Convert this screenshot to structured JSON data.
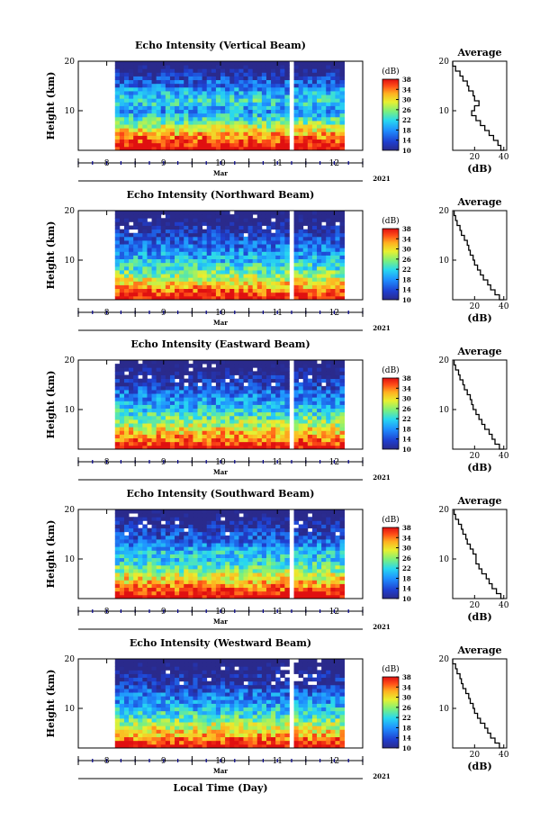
{
  "chart_data": [
    {
      "type": "heatmap",
      "title": "Echo Intensity (Vertical Beam)",
      "ylabel": "Height (km)",
      "ylim": [
        2,
        20
      ],
      "yticks": [
        "10",
        "20"
      ],
      "xticks": [
        "8",
        "9",
        "10",
        "11",
        "12"
      ],
      "x_month": "Mar",
      "x_year": "2021",
      "colorbar_label": "(dB)",
      "colorbar_ticks": [
        "10",
        "14",
        "18",
        "22",
        "26",
        "30",
        "34",
        "38"
      ],
      "colorbar_range": [
        10,
        38
      ],
      "data_gaps_day": [
        [
          7.5,
          8.15
        ],
        [
          11.2,
          11.3
        ]
      ],
      "x_range_day": [
        7.5,
        12.5
      ],
      "profile": {
        "title": "Average",
        "xlabel": "(dB)",
        "xticks": [
          "20",
          "40"
        ],
        "xlim": [
          5,
          42
        ],
        "height_km": [
          20,
          19,
          18,
          17,
          16,
          15,
          14,
          13,
          12,
          11,
          10,
          9,
          8,
          7,
          6,
          5,
          4,
          3,
          2
        ],
        "avg_db": [
          5,
          7,
          10,
          12,
          15,
          16,
          19,
          20,
          23,
          20,
          18,
          21,
          24,
          27,
          30,
          33,
          36,
          38,
          40
        ]
      }
    },
    {
      "type": "heatmap",
      "title": "Echo Intensity (Northward Beam)",
      "ylabel": "Height (km)",
      "ylim": [
        2,
        20
      ],
      "yticks": [
        "10",
        "20"
      ],
      "xticks": [
        "8",
        "9",
        "10",
        "11",
        "12"
      ],
      "x_month": "Mar",
      "x_year": "2021",
      "colorbar_label": "(dB)",
      "colorbar_ticks": [
        "10",
        "14",
        "18",
        "22",
        "26",
        "30",
        "34",
        "38"
      ],
      "colorbar_range": [
        10,
        38
      ],
      "data_gaps_day": [
        [
          7.5,
          8.15
        ],
        [
          11.2,
          11.3
        ]
      ],
      "x_range_day": [
        7.5,
        12.5
      ],
      "profile": {
        "title": "Average",
        "xlabel": "(dB)",
        "xticks": [
          "20",
          "40"
        ],
        "xlim": [
          5,
          42
        ],
        "height_km": [
          20,
          19,
          18,
          17,
          16,
          15,
          14,
          13,
          12,
          11,
          10,
          9,
          8,
          7,
          6,
          5,
          4,
          3,
          2
        ],
        "avg_db": [
          6,
          7,
          8,
          10,
          11,
          13,
          15,
          16,
          17,
          19,
          20,
          22,
          24,
          26,
          29,
          31,
          34,
          37,
          40
        ]
      }
    },
    {
      "type": "heatmap",
      "title": "Echo Intensity (Eastward Beam)",
      "ylabel": "Height (km)",
      "ylim": [
        2,
        20
      ],
      "yticks": [
        "10",
        "20"
      ],
      "xticks": [
        "8",
        "9",
        "10",
        "11",
        "12"
      ],
      "x_month": "Mar",
      "x_year": "2021",
      "colorbar_label": "(dB)",
      "colorbar_ticks": [
        "10",
        "14",
        "18",
        "22",
        "26",
        "30",
        "34",
        "38"
      ],
      "colorbar_range": [
        10,
        38
      ],
      "data_gaps_day": [
        [
          7.5,
          8.15
        ],
        [
          11.2,
          11.3
        ]
      ],
      "x_range_day": [
        7.5,
        12.5
      ],
      "profile": {
        "title": "Average",
        "xlabel": "(dB)",
        "xticks": [
          "20",
          "40"
        ],
        "xlim": [
          5,
          42
        ],
        "height_km": [
          20,
          19,
          18,
          17,
          16,
          15,
          14,
          13,
          12,
          11,
          10,
          9,
          8,
          7,
          6,
          5,
          4,
          3,
          2
        ],
        "avg_db": [
          6,
          7,
          9,
          10,
          12,
          13,
          15,
          17,
          18,
          19,
          21,
          23,
          25,
          27,
          30,
          32,
          34,
          37,
          40
        ]
      }
    },
    {
      "type": "heatmap",
      "title": "Echo Intensity (Southward Beam)",
      "ylabel": "Height (km)",
      "ylim": [
        2,
        20
      ],
      "yticks": [
        "10",
        "20"
      ],
      "xticks": [
        "8",
        "9",
        "10",
        "11",
        "12"
      ],
      "x_month": "Mar",
      "x_year": "2021",
      "colorbar_label": "(dB)",
      "colorbar_ticks": [
        "10",
        "14",
        "18",
        "22",
        "26",
        "30",
        "34",
        "38"
      ],
      "colorbar_range": [
        10,
        38
      ],
      "data_gaps_day": [
        [
          7.5,
          8.15
        ],
        [
          11.2,
          11.3
        ]
      ],
      "x_range_day": [
        7.5,
        12.5
      ],
      "profile": {
        "title": "Average",
        "xlabel": "(dB)",
        "xticks": [
          "20",
          "40"
        ],
        "xlim": [
          5,
          42
        ],
        "height_km": [
          20,
          19,
          18,
          17,
          16,
          15,
          14,
          13,
          12,
          11,
          10,
          9,
          8,
          7,
          6,
          5,
          4,
          3,
          2
        ],
        "avg_db": [
          6,
          7,
          9,
          11,
          12,
          14,
          15,
          17,
          19,
          21,
          21,
          23,
          25,
          28,
          30,
          32,
          35,
          38,
          40
        ]
      }
    },
    {
      "type": "heatmap",
      "title": "Echo Intensity (Westward Beam)",
      "ylabel": "Height (km)",
      "ylim": [
        2,
        20
      ],
      "yticks": [
        "10",
        "20"
      ],
      "xticks": [
        "8",
        "9",
        "10",
        "11",
        "12"
      ],
      "x_month": "Mar",
      "x_year": "2021",
      "colorbar_label": "(dB)",
      "colorbar_ticks": [
        "10",
        "14",
        "18",
        "22",
        "26",
        "30",
        "34",
        "38"
      ],
      "colorbar_range": [
        10,
        38
      ],
      "data_gaps_day": [
        [
          7.5,
          8.15
        ],
        [
          11.2,
          11.3
        ]
      ],
      "x_range_day": [
        7.5,
        12.5
      ],
      "profile": {
        "title": "Average",
        "xlabel": "(dB)",
        "xticks": [
          "20",
          "40"
        ],
        "xlim": [
          5,
          42
        ],
        "height_km": [
          20,
          19,
          18,
          17,
          16,
          15,
          14,
          13,
          12,
          11,
          10,
          9,
          8,
          7,
          6,
          5,
          4,
          3,
          2
        ],
        "avg_db": [
          5,
          7,
          8,
          10,
          11,
          12,
          14,
          16,
          17,
          19,
          20,
          22,
          24,
          27,
          29,
          31,
          34,
          37,
          40
        ]
      }
    }
  ],
  "xlabel": "Local Time (Day)"
}
